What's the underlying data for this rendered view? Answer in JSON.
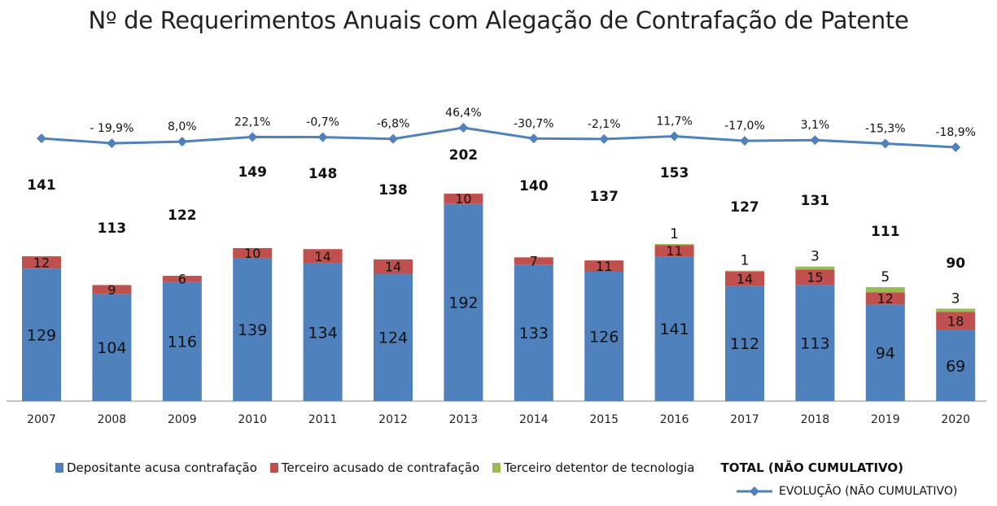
{
  "chart_data": {
    "type": "bar",
    "stacked": true,
    "title": "Nº de Requerimentos Anuais com Alegação de Contrafação de Patente",
    "categories": [
      "2007",
      "2008",
      "2009",
      "2010",
      "2011",
      "2012",
      "2013",
      "2014",
      "2015",
      "2016",
      "2017",
      "2018",
      "2019",
      "2020"
    ],
    "series": [
      {
        "name": "Depositante acusa contrafação",
        "color": "#4F81BD",
        "values": [
          129,
          104,
          116,
          139,
          134,
          124,
          192,
          133,
          126,
          141,
          112,
          113,
          94,
          69
        ]
      },
      {
        "name": "Terceiro acusado de contrafação",
        "color": "#C0504D",
        "values": [
          12,
          9,
          6,
          10,
          14,
          14,
          10,
          7,
          11,
          11,
          14,
          15,
          12,
          18
        ]
      },
      {
        "name": "Terceiro detentor de tecnologia",
        "color": "#9BBB59",
        "values": [
          0,
          0,
          0,
          0,
          0,
          0,
          0,
          0,
          0,
          1,
          1,
          3,
          5,
          3
        ]
      }
    ],
    "totals": {
      "name": "TOTAL (NÃO CUMULATIVO)",
      "values": [
        141,
        113,
        122,
        149,
        148,
        138,
        202,
        140,
        137,
        153,
        127,
        131,
        111,
        90
      ]
    },
    "line": {
      "name": "EVOLUÇÃO (NÃO CUMULATIVO)",
      "color": "#4F81BD",
      "labels": [
        "",
        "- 19,9%",
        "8,0%",
        "22,1%",
        "-0,7%",
        "-6,8%",
        "46,4%",
        "-30,7%",
        "-2,1%",
        "11,7%",
        "-17,0%",
        "3,1%",
        "-15,3%",
        "-18,9%"
      ]
    },
    "xlabel": "",
    "ylabel": "",
    "grid": false,
    "legend": "bottom"
  }
}
